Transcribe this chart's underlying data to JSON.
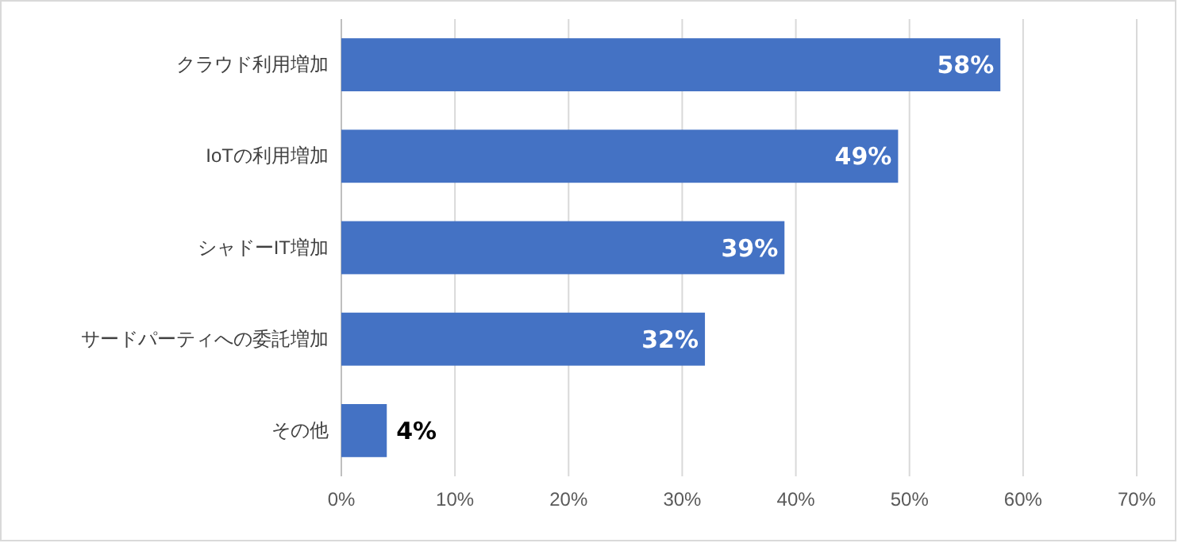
{
  "chart_data": {
    "type": "bar",
    "orientation": "horizontal",
    "categories": [
      "クラウド利用増加",
      "IoTの利用増加",
      "シャドーIT増加",
      "サードパーティへの委託増加",
      "その他"
    ],
    "values": [
      58,
      49,
      39,
      32,
      4
    ],
    "value_labels": [
      "58%",
      "49%",
      "39%",
      "32%",
      "4%"
    ],
    "color": "#4472c4",
    "xlim": [
      0,
      70
    ],
    "xticks": [
      {
        "value": 0,
        "label": "0%"
      },
      {
        "value": 10,
        "label": "10%"
      },
      {
        "value": 20,
        "label": "20%"
      },
      {
        "value": 30,
        "label": "30%"
      },
      {
        "value": 40,
        "label": "40%"
      },
      {
        "value": 50,
        "label": "50%"
      },
      {
        "value": 60,
        "label": "60%"
      },
      {
        "value": 70,
        "label": "70%"
      }
    ],
    "grid": "x"
  }
}
